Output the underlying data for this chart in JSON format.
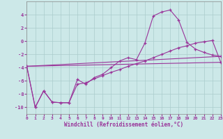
{
  "xlabel": "Windchill (Refroidissement éolien,°C)",
  "bg_color": "#cce8e8",
  "grid_color": "#aacccc",
  "line_color": "#993399",
  "xlim": [
    0,
    23
  ],
  "ylim": [
    -11,
    6
  ],
  "xticks": [
    0,
    1,
    2,
    3,
    4,
    5,
    6,
    7,
    8,
    9,
    10,
    11,
    12,
    13,
    14,
    15,
    16,
    17,
    18,
    19,
    20,
    21,
    22,
    23
  ],
  "yticks": [
    -10,
    -8,
    -6,
    -4,
    -2,
    0,
    2,
    4
  ],
  "curve1_x": [
    0,
    1,
    2,
    3,
    4,
    5,
    6,
    7,
    8,
    9,
    10,
    11,
    12,
    13,
    14,
    15,
    16,
    17,
    18,
    19,
    20,
    21,
    22,
    23
  ],
  "curve1_y": [
    -3.8,
    -10.0,
    -7.5,
    -9.2,
    -9.3,
    -9.3,
    -5.8,
    -6.5,
    -5.5,
    -5.0,
    -4.0,
    -3.0,
    -2.5,
    -2.8,
    -0.3,
    3.8,
    4.4,
    4.7,
    3.2,
    -0.2,
    -1.2,
    -1.7,
    -2.1,
    -2.3
  ],
  "curve2_x": [
    0,
    1,
    2,
    3,
    4,
    5,
    6,
    7,
    8,
    9,
    10,
    11,
    12,
    13,
    14,
    15,
    16,
    17,
    18,
    19,
    20,
    21,
    22,
    23
  ],
  "curve2_y": [
    -3.8,
    -10.0,
    -7.5,
    -9.2,
    -9.3,
    -9.3,
    -6.5,
    -6.3,
    -5.7,
    -5.2,
    -4.7,
    -4.3,
    -3.8,
    -3.4,
    -3.0,
    -2.5,
    -2.0,
    -1.5,
    -1.0,
    -0.7,
    -0.3,
    -0.1,
    0.1,
    -3.2
  ],
  "line3_x": [
    0,
    23
  ],
  "line3_y": [
    -3.8,
    -2.3
  ],
  "line4_x": [
    0,
    23
  ],
  "line4_y": [
    -3.8,
    -3.2
  ]
}
